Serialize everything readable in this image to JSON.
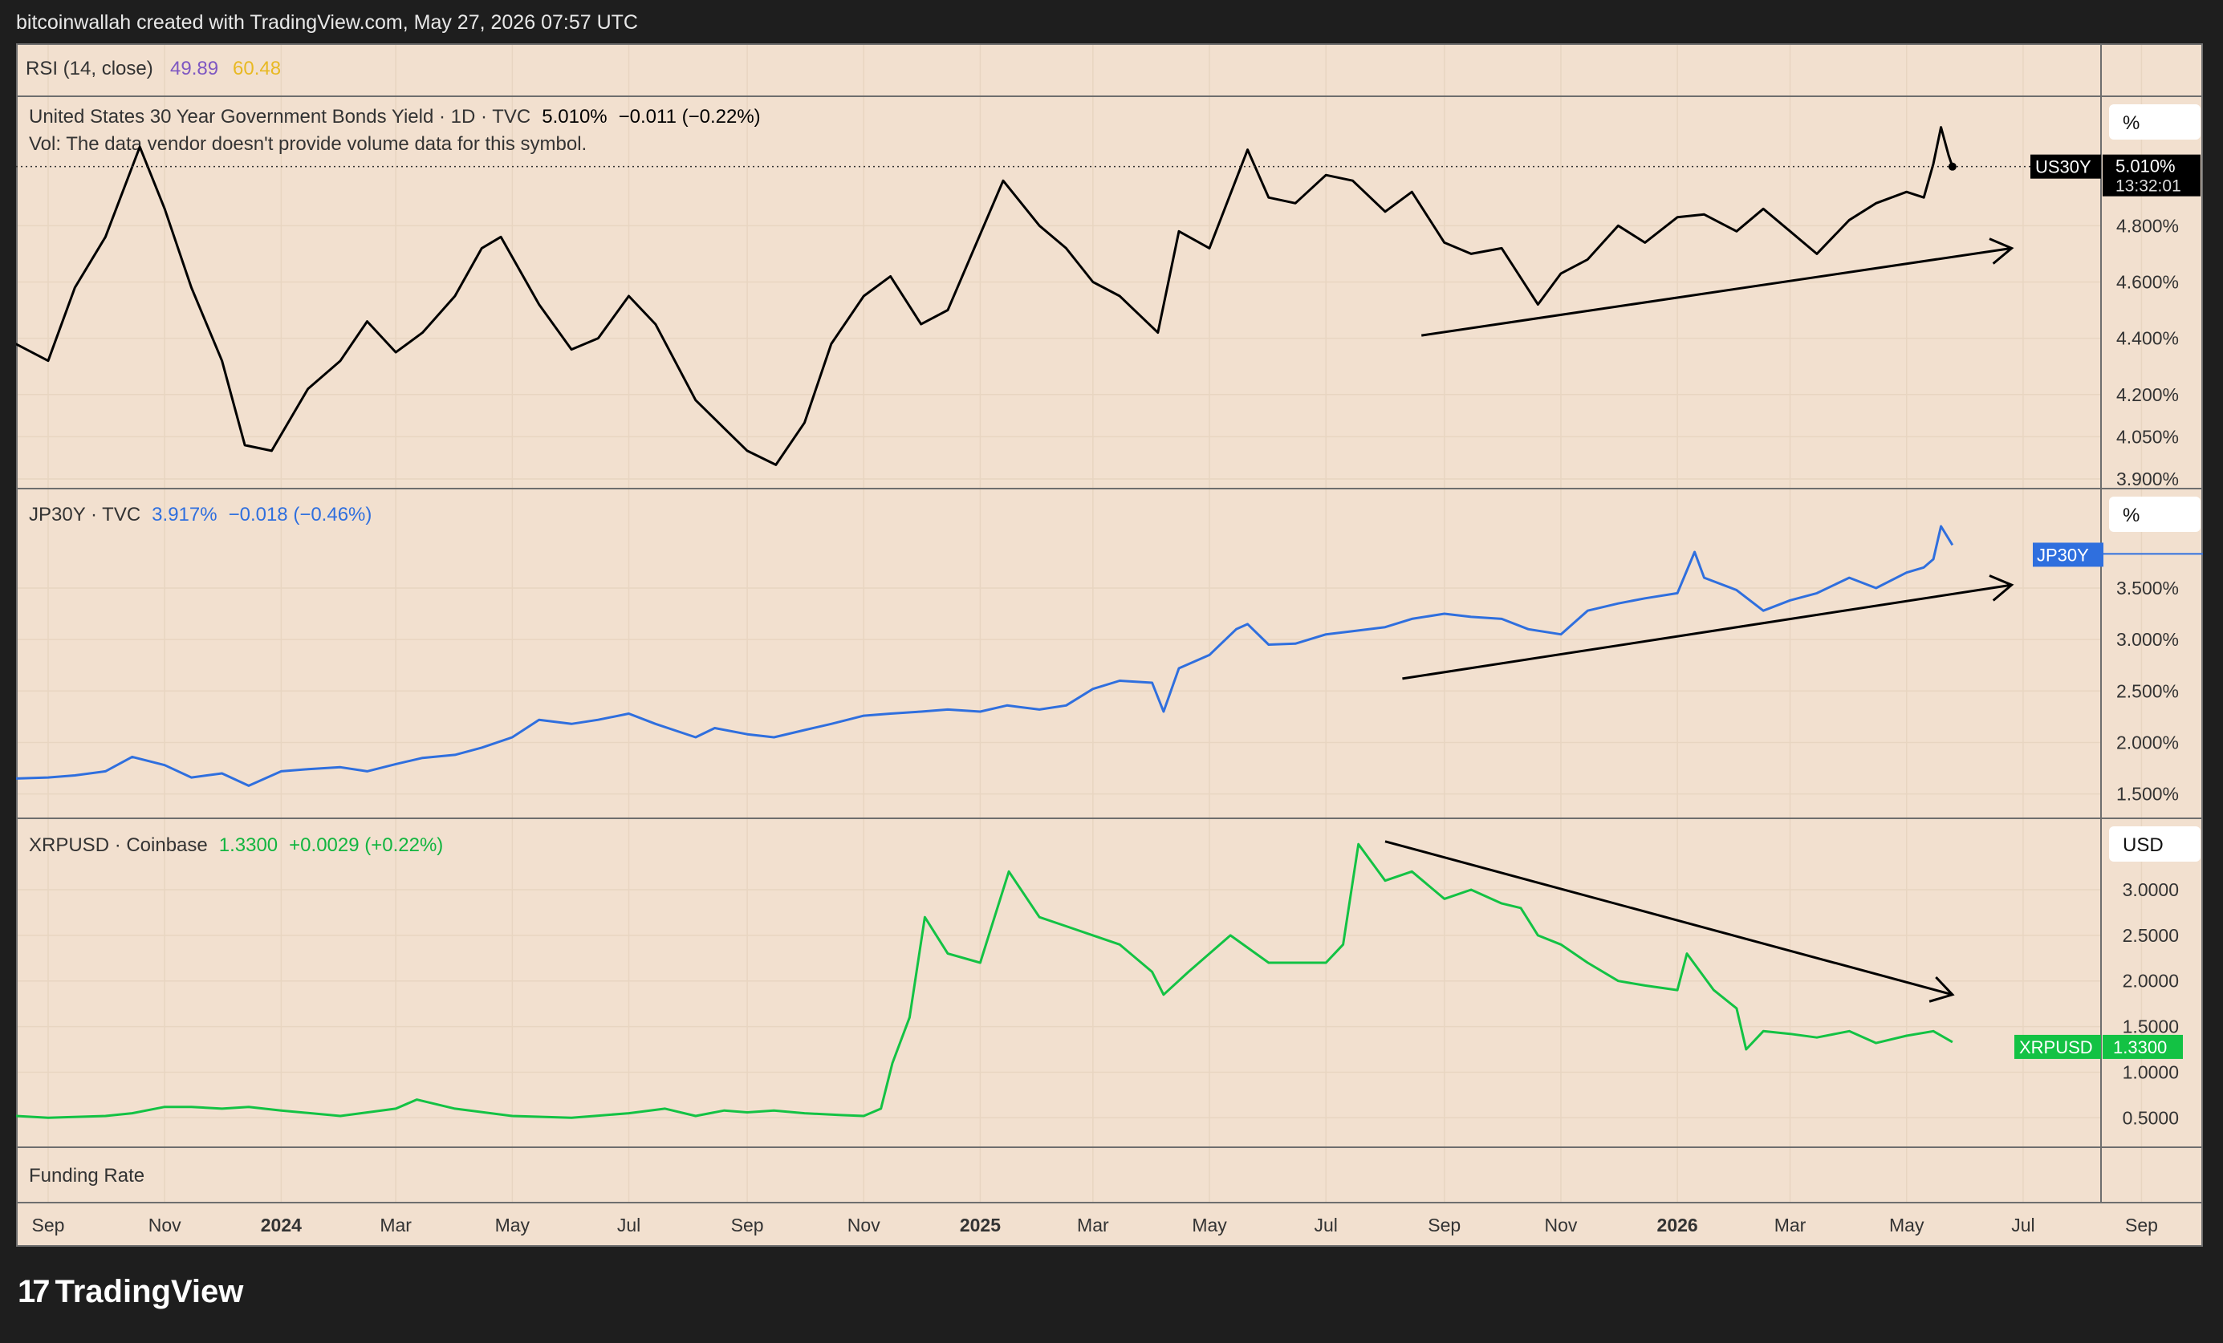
{
  "header": {
    "credit": "bitcoinwallah created with TradingView.com, May 27, 2026 07:57 UTC"
  },
  "logo": {
    "text": "TradingView"
  },
  "colors": {
    "background": "#f2e0cf",
    "grid": "#e9d6c3",
    "border": "#8a8a8a",
    "us": "#000000",
    "jp": "#2f6fde",
    "xrp": "#13c244",
    "rsi_val1": "#7e57c2",
    "rsi_val2": "#f5c518"
  },
  "rsi_pane": {
    "label": "RSI (14, close)",
    "value1": "49.89",
    "value2": "60.48"
  },
  "funding_pane": {
    "label": "Funding Rate"
  },
  "time_axis": {
    "labels": [
      "Sep",
      "Nov",
      "2024",
      "Mar",
      "May",
      "Jul",
      "Sep",
      "Nov",
      "2025",
      "Mar",
      "May",
      "Jul",
      "Sep",
      "Nov",
      "2026",
      "Mar",
      "May",
      "Jul",
      "Sep"
    ],
    "bold": [
      "2024",
      "2025",
      "2026"
    ]
  },
  "chart_data": [
    {
      "type": "line",
      "title": "United States 30 Year Government Bonds Yield · 1D · TVC",
      "last_value": "5.010%",
      "change": "−0.011 (−0.22%)",
      "volume_note": "Vol: The data vendor doesn't provide volume data for this symbol.",
      "unit": "%",
      "price_tag": "US30Y",
      "price_tag_value": "5.010%",
      "countdown": "13:32:01",
      "y_ticks": [
        "4.800%",
        "4.600%",
        "4.400%",
        "4.200%",
        "4.050%",
        "3.900%"
      ],
      "y_tick_values": [
        4.8,
        4.6,
        4.4,
        4.2,
        4.05,
        3.9
      ],
      "ylim": [
        3.88,
        5.22
      ],
      "x_range": [
        "2023-08-15",
        "2026-05-25"
      ],
      "trendline": {
        "direction": "up",
        "from": [
          "2025-08-20",
          4.41
        ],
        "to": [
          "2026-06-25",
          4.72
        ]
      },
      "series": [
        {
          "x": [
            "2023-08-15",
            "2023-09-01",
            "2023-09-15",
            "2023-10-01",
            "2023-10-19",
            "2023-11-01",
            "2023-11-15",
            "2023-12-01",
            "2023-12-13",
            "2023-12-27",
            "2024-01-15",
            "2024-02-01",
            "2024-02-15",
            "2024-03-01",
            "2024-03-15",
            "2024-04-01",
            "2024-04-15",
            "2024-04-25",
            "2024-05-15",
            "2024-06-01",
            "2024-06-15",
            "2024-07-01",
            "2024-07-15",
            "2024-08-05",
            "2024-08-20",
            "2024-09-01",
            "2024-09-16",
            "2024-10-01",
            "2024-10-15",
            "2024-11-01",
            "2024-11-15",
            "2024-12-01",
            "2024-12-15",
            "2025-01-13",
            "2025-02-01",
            "2025-02-15",
            "2025-03-01",
            "2025-03-15",
            "2025-04-04",
            "2025-04-15",
            "2025-05-01",
            "2025-05-21",
            "2025-06-01",
            "2025-06-15",
            "2025-07-01",
            "2025-07-15",
            "2025-08-01",
            "2025-08-15",
            "2025-09-01",
            "2025-09-15",
            "2025-10-01",
            "2025-10-20",
            "2025-11-01",
            "2025-11-15",
            "2025-12-01",
            "2025-12-15",
            "2026-01-01",
            "2026-01-15",
            "2026-02-01",
            "2026-02-15",
            "2026-03-01",
            "2026-03-15",
            "2026-04-01",
            "2026-04-15",
            "2026-05-01",
            "2026-05-10",
            "2026-05-15",
            "2026-05-19",
            "2026-05-23",
            "2026-05-25"
          ],
          "values": [
            4.38,
            4.32,
            4.58,
            4.76,
            5.08,
            4.86,
            4.58,
            4.32,
            4.02,
            4.0,
            4.22,
            4.32,
            4.46,
            4.35,
            4.42,
            4.55,
            4.72,
            4.76,
            4.52,
            4.36,
            4.4,
            4.55,
            4.45,
            4.18,
            4.08,
            4.0,
            3.95,
            4.1,
            4.38,
            4.55,
            4.62,
            4.45,
            4.5,
            4.96,
            4.8,
            4.72,
            4.6,
            4.55,
            4.42,
            4.78,
            4.72,
            5.07,
            4.9,
            4.88,
            4.98,
            4.96,
            4.85,
            4.92,
            4.74,
            4.7,
            4.72,
            4.52,
            4.63,
            4.68,
            4.8,
            4.74,
            4.83,
            4.84,
            4.78,
            4.86,
            4.78,
            4.7,
            4.82,
            4.88,
            4.92,
            4.9,
            5.02,
            5.15,
            5.05,
            5.01
          ]
        }
      ]
    },
    {
      "type": "line",
      "title": "JP30Y · TVC",
      "last_value": "3.917%",
      "change": "−0.018 (−0.46%)",
      "unit": "%",
      "price_tag": "JP30Y",
      "y_ticks": [
        "3.500%",
        "3.000%",
        "2.500%",
        "2.000%",
        "1.500%"
      ],
      "y_tick_values": [
        3.5,
        3.0,
        2.5,
        2.0,
        1.5
      ],
      "ylim": [
        1.31,
        4.31
      ],
      "x_range": [
        "2023-08-15",
        "2026-05-25"
      ],
      "trendline": {
        "direction": "up",
        "from": [
          "2025-08-10",
          2.62
        ],
        "to": [
          "2026-06-25",
          3.53
        ]
      },
      "series": [
        {
          "x": [
            "2023-08-15",
            "2023-09-01",
            "2023-09-15",
            "2023-10-01",
            "2023-10-15",
            "2023-11-01",
            "2023-11-15",
            "2023-12-01",
            "2023-12-15",
            "2024-01-01",
            "2024-01-15",
            "2024-02-01",
            "2024-02-15",
            "2024-03-01",
            "2024-03-15",
            "2024-04-01",
            "2024-04-15",
            "2024-05-01",
            "2024-05-15",
            "2024-06-01",
            "2024-06-15",
            "2024-07-01",
            "2024-07-15",
            "2024-08-05",
            "2024-08-15",
            "2024-09-01",
            "2024-09-15",
            "2024-10-01",
            "2024-10-15",
            "2024-11-01",
            "2024-11-15",
            "2024-12-01",
            "2024-12-15",
            "2025-01-01",
            "2025-01-15",
            "2025-02-01",
            "2025-02-15",
            "2025-03-01",
            "2025-03-15",
            "2025-04-01",
            "2025-04-07",
            "2025-04-15",
            "2025-05-01",
            "2025-05-15",
            "2025-05-21",
            "2025-06-01",
            "2025-06-15",
            "2025-07-01",
            "2025-07-15",
            "2025-08-01",
            "2025-08-15",
            "2025-09-01",
            "2025-09-15",
            "2025-10-01",
            "2025-10-15",
            "2025-11-01",
            "2025-11-15",
            "2025-12-01",
            "2025-12-15",
            "2026-01-01",
            "2026-01-10",
            "2026-01-15",
            "2026-02-01",
            "2026-02-15",
            "2026-03-01",
            "2026-03-15",
            "2026-04-01",
            "2026-04-15",
            "2026-05-01",
            "2026-05-10",
            "2026-05-15",
            "2026-05-19",
            "2026-05-25"
          ],
          "values": [
            1.65,
            1.66,
            1.68,
            1.72,
            1.86,
            1.78,
            1.66,
            1.7,
            1.58,
            1.72,
            1.74,
            1.76,
            1.72,
            1.79,
            1.85,
            1.88,
            1.95,
            2.05,
            2.22,
            2.18,
            2.22,
            2.28,
            2.18,
            2.05,
            2.14,
            2.08,
            2.05,
            2.12,
            2.18,
            2.26,
            2.28,
            2.3,
            2.32,
            2.3,
            2.36,
            2.32,
            2.36,
            2.52,
            2.6,
            2.58,
            2.3,
            2.72,
            2.85,
            3.1,
            3.15,
            2.95,
            2.96,
            3.05,
            3.08,
            3.12,
            3.2,
            3.25,
            3.22,
            3.2,
            3.1,
            3.05,
            3.28,
            3.35,
            3.4,
            3.45,
            3.85,
            3.6,
            3.48,
            3.28,
            3.38,
            3.45,
            3.6,
            3.5,
            3.65,
            3.7,
            3.78,
            4.1,
            3.917
          ]
        }
      ]
    },
    {
      "type": "line",
      "title": "XRPUSD · Coinbase",
      "last_value": "1.3300",
      "change": "+0.0029 (+0.22%)",
      "unit": "USD",
      "price_tag": "XRPUSD",
      "price_tag_value": "1.3300",
      "y_ticks": [
        "3.0000",
        "2.5000",
        "2.0000",
        "1.5000",
        "1.0000",
        "0.5000"
      ],
      "y_tick_values": [
        3.0,
        2.5,
        2.0,
        1.5,
        1.0,
        0.5
      ],
      "ylim": [
        0.23,
        3.66
      ],
      "x_range": [
        "2023-08-15",
        "2026-05-25"
      ],
      "trendline": {
        "direction": "down",
        "from": [
          "2025-08-01",
          3.53
        ],
        "to": [
          "2026-05-25",
          1.85
        ]
      },
      "series": [
        {
          "x": [
            "2023-08-15",
            "2023-09-01",
            "2023-10-01",
            "2023-10-15",
            "2023-11-01",
            "2023-11-15",
            "2023-12-01",
            "2023-12-15",
            "2024-01-01",
            "2024-02-01",
            "2024-03-01",
            "2024-03-12",
            "2024-04-01",
            "2024-05-01",
            "2024-06-01",
            "2024-07-01",
            "2024-07-20",
            "2024-08-05",
            "2024-08-20",
            "2024-09-01",
            "2024-09-15",
            "2024-10-01",
            "2024-10-20",
            "2024-11-01",
            "2024-11-10",
            "2024-11-16",
            "2024-11-25",
            "2024-12-03",
            "2024-12-15",
            "2025-01-01",
            "2025-01-16",
            "2025-02-01",
            "2025-02-15",
            "2025-03-01",
            "2025-03-15",
            "2025-04-01",
            "2025-04-07",
            "2025-04-20",
            "2025-05-12",
            "2025-06-01",
            "2025-06-20",
            "2025-07-01",
            "2025-07-10",
            "2025-07-18",
            "2025-08-01",
            "2025-08-15",
            "2025-09-01",
            "2025-09-15",
            "2025-10-01",
            "2025-10-11",
            "2025-10-20",
            "2025-11-01",
            "2025-11-15",
            "2025-12-01",
            "2025-12-15",
            "2026-01-01",
            "2026-01-06",
            "2026-01-20",
            "2026-02-01",
            "2026-02-06",
            "2026-02-15",
            "2026-03-01",
            "2026-03-15",
            "2026-04-01",
            "2026-04-15",
            "2026-05-01",
            "2026-05-15",
            "2026-05-25"
          ],
          "values": [
            0.52,
            0.5,
            0.52,
            0.55,
            0.62,
            0.62,
            0.6,
            0.62,
            0.58,
            0.52,
            0.6,
            0.7,
            0.6,
            0.52,
            0.5,
            0.55,
            0.6,
            0.52,
            0.58,
            0.56,
            0.58,
            0.55,
            0.53,
            0.52,
            0.6,
            1.1,
            1.6,
            2.7,
            2.3,
            2.2,
            3.2,
            2.7,
            2.6,
            2.5,
            2.4,
            2.1,
            1.85,
            2.1,
            2.5,
            2.2,
            2.2,
            2.2,
            2.4,
            3.5,
            3.1,
            3.2,
            2.9,
            3.0,
            2.85,
            2.8,
            2.5,
            2.4,
            2.2,
            2.0,
            1.95,
            1.9,
            2.3,
            1.9,
            1.7,
            1.25,
            1.45,
            1.42,
            1.38,
            1.45,
            1.32,
            1.4,
            1.45,
            1.33
          ]
        }
      ]
    }
  ]
}
